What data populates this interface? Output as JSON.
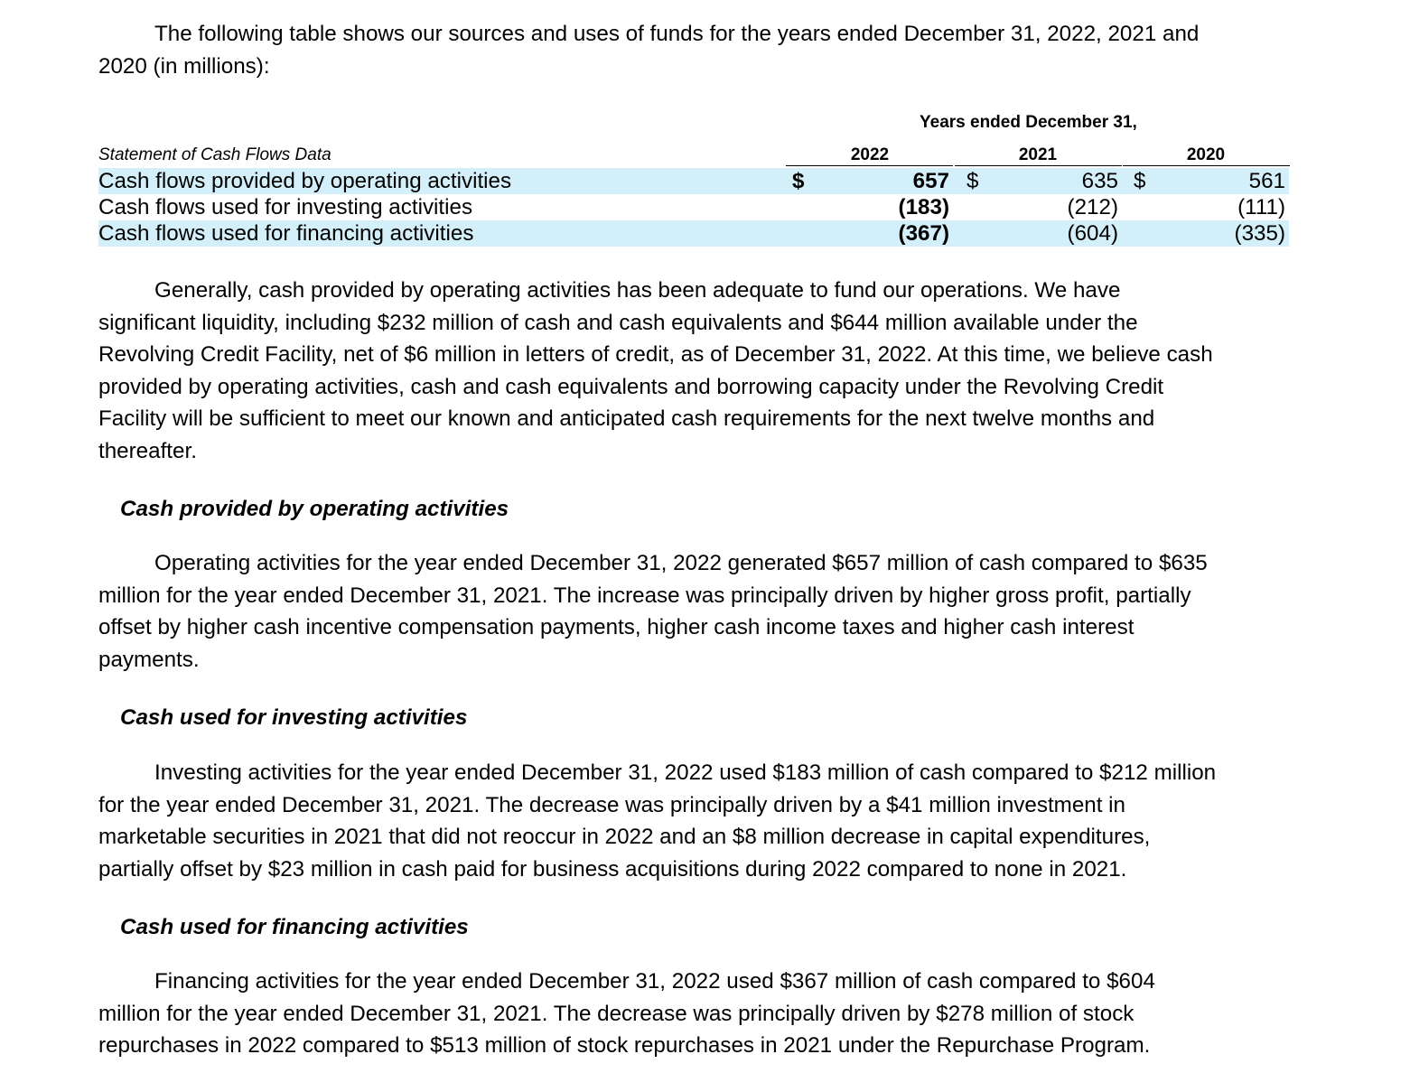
{
  "intro": {
    "line1": "The following table shows our sources and uses of funds for the years ended December 31, 2022, 2021 and",
    "line2": "2020 (in millions):"
  },
  "table": {
    "group_header": "Years ended December 31,",
    "caption": "Statement of Cash Flows Data",
    "years": [
      "2022",
      "2021",
      "2020"
    ],
    "currency_symbol": "$",
    "rows": [
      {
        "label": "Cash flows provided by operating activities",
        "values": [
          "657",
          "635",
          "561"
        ],
        "show_dollar": true
      },
      {
        "label": "Cash flows used for investing activities",
        "values": [
          "(183)",
          "(212)",
          "(111)"
        ],
        "show_dollar": false
      },
      {
        "label": "Cash flows used for financing activities",
        "values": [
          "(367)",
          "(604)",
          "(335)"
        ],
        "show_dollar": false
      }
    ]
  },
  "paragraph_liquidity": [
    "Generally, cash provided by operating activities has been adequate to fund our operations. We have",
    "significant liquidity, including $232 million of cash and cash equivalents and $644 million available under the",
    "Revolving Credit Facility, net of $6 million in letters of credit, as of December 31, 2022. At this time, we believe cash",
    "provided by operating activities, cash and cash equivalents and borrowing capacity under the Revolving Credit",
    "Facility will be sufficient to meet our known and anticipated cash requirements for the next twelve months and",
    "thereafter."
  ],
  "section_operating": {
    "heading": "Cash provided by operating activities",
    "lines": [
      "Operating activities for the year ended December 31, 2022 generated $657 million of cash compared to $635",
      "million for the year ended December 31, 2021. The increase was principally driven by higher gross profit, partially",
      "offset by higher cash incentive compensation payments, higher cash income taxes and higher cash interest",
      "payments."
    ]
  },
  "section_investing": {
    "heading": "Cash used for investing activities",
    "lines": [
      "Investing activities for the year ended December 31, 2022 used $183 million of cash compared to $212 million",
      "for the year ended December 31, 2021. The decrease was principally driven by a $41 million investment in",
      "marketable securities in 2021 that did not reoccur in 2022 and an $8 million decrease in capital expenditures,",
      "partially offset by $23 million in cash paid for business acquisitions during 2022 compared to none in 2021."
    ]
  },
  "section_financing": {
    "heading": "Cash used for financing activities",
    "lines": [
      "Financing activities for the year ended December 31, 2022 used $367 million of cash compared to $604",
      "million for the year ended December 31, 2021. The decrease was principally driven by $278 million of stock",
      "repurchases in 2022 compared to $513 million of stock repurchases in 2021 under the Repurchase Program."
    ]
  }
}
